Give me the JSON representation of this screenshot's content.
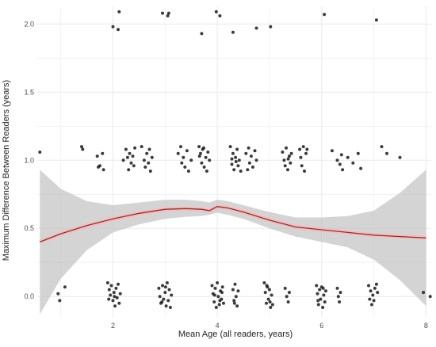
{
  "chart_data": {
    "type": "scatter",
    "xlabel": "Mean Age (all readers, years)",
    "ylabel": "Maximum Difference Between Readers (years)",
    "xlim": [
      0.55,
      8.1
    ],
    "ylim": [
      -0.15,
      2.13
    ],
    "x_ticks": [
      2,
      4,
      6,
      8
    ],
    "x_tick_labels": [
      "2",
      "4",
      "6",
      "8"
    ],
    "y_ticks": [
      0.0,
      0.5,
      1.0,
      1.5,
      2.0
    ],
    "y_tick_labels": [
      "0.0",
      "0.5",
      "1.0",
      "1.5",
      "2.0"
    ],
    "grid": true,
    "colors": {
      "points": "#1a1a1a",
      "smooth_line": "#b22222",
      "confidence_band": "#bdbdbd",
      "grid": "#ebebeb",
      "axis_text": "#4d4d4d"
    },
    "smooth": {
      "x": [
        0.6,
        1.0,
        1.5,
        2.0,
        2.5,
        3.0,
        3.4,
        3.7,
        3.85,
        4.0,
        4.2,
        4.5,
        5.0,
        5.5,
        6.0,
        6.5,
        7.0,
        7.5,
        8.0
      ],
      "y": [
        0.4,
        0.46,
        0.52,
        0.57,
        0.61,
        0.64,
        0.645,
        0.64,
        0.63,
        0.66,
        0.65,
        0.62,
        0.56,
        0.51,
        0.49,
        0.47,
        0.45,
        0.44,
        0.43
      ],
      "lower": [
        -0.13,
        0.13,
        0.34,
        0.47,
        0.53,
        0.57,
        0.585,
        0.59,
        0.6,
        0.615,
        0.6,
        0.57,
        0.5,
        0.44,
        0.4,
        0.36,
        0.27,
        0.12,
        -0.07
      ],
      "upper": [
        0.93,
        0.79,
        0.7,
        0.67,
        0.69,
        0.71,
        0.71,
        0.7,
        0.69,
        0.71,
        0.7,
        0.67,
        0.62,
        0.58,
        0.58,
        0.59,
        0.63,
        0.76,
        0.93
      ]
    },
    "points": [
      {
        "x": 2.0,
        "y": 1.98
      },
      {
        "x": 2.1,
        "y": 1.96
      },
      {
        "x": 2.12,
        "y": 2.09
      },
      {
        "x": 2.95,
        "y": 2.08
      },
      {
        "x": 3.05,
        "y": 2.06
      },
      {
        "x": 3.07,
        "y": 2.08
      },
      {
        "x": 3.7,
        "y": 1.93
      },
      {
        "x": 3.98,
        "y": 2.09
      },
      {
        "x": 4.05,
        "y": 2.06
      },
      {
        "x": 4.3,
        "y": 1.94
      },
      {
        "x": 4.75,
        "y": 1.97
      },
      {
        "x": 5.02,
        "y": 1.98
      },
      {
        "x": 6.05,
        "y": 2.07
      },
      {
        "x": 7.05,
        "y": 2.03
      },
      {
        "x": 0.6,
        "y": 1.06
      },
      {
        "x": 1.4,
        "y": 1.1
      },
      {
        "x": 1.42,
        "y": 1.08
      },
      {
        "x": 1.7,
        "y": 1.03
      },
      {
        "x": 1.75,
        "y": 0.96
      },
      {
        "x": 1.8,
        "y": 1.05
      },
      {
        "x": 1.82,
        "y": 0.93
      },
      {
        "x": 1.72,
        "y": 0.95
      },
      {
        "x": 2.2,
        "y": 1.0
      },
      {
        "x": 2.25,
        "y": 1.08
      },
      {
        "x": 2.28,
        "y": 1.02
      },
      {
        "x": 2.3,
        "y": 0.93
      },
      {
        "x": 2.32,
        "y": 1.05
      },
      {
        "x": 2.35,
        "y": 0.98
      },
      {
        "x": 2.38,
        "y": 1.03
      },
      {
        "x": 2.4,
        "y": 0.96
      },
      {
        "x": 2.42,
        "y": 1.09
      },
      {
        "x": 2.55,
        "y": 1.1
      },
      {
        "x": 2.6,
        "y": 1.0
      },
      {
        "x": 2.62,
        "y": 0.95
      },
      {
        "x": 2.65,
        "y": 1.05
      },
      {
        "x": 2.7,
        "y": 1.08
      },
      {
        "x": 2.72,
        "y": 0.92
      },
      {
        "x": 2.75,
        "y": 1.02
      },
      {
        "x": 2.68,
        "y": 0.98
      },
      {
        "x": 3.25,
        "y": 1.05
      },
      {
        "x": 3.3,
        "y": 1.1
      },
      {
        "x": 3.32,
        "y": 0.98
      },
      {
        "x": 3.35,
        "y": 1.02
      },
      {
        "x": 3.38,
        "y": 0.95
      },
      {
        "x": 3.42,
        "y": 1.07
      },
      {
        "x": 3.45,
        "y": 0.92
      },
      {
        "x": 3.5,
        "y": 1.0
      },
      {
        "x": 3.65,
        "y": 1.1
      },
      {
        "x": 3.68,
        "y": 1.05
      },
      {
        "x": 3.7,
        "y": 0.98
      },
      {
        "x": 3.72,
        "y": 1.08
      },
      {
        "x": 3.75,
        "y": 0.95
      },
      {
        "x": 3.78,
        "y": 1.02
      },
      {
        "x": 3.8,
        "y": 0.92
      },
      {
        "x": 3.82,
        "y": 1.06
      },
      {
        "x": 3.85,
        "y": 1.0
      },
      {
        "x": 3.66,
        "y": 1.03
      },
      {
        "x": 3.74,
        "y": 1.09
      },
      {
        "x": 4.25,
        "y": 1.1
      },
      {
        "x": 4.28,
        "y": 0.97
      },
      {
        "x": 4.3,
        "y": 1.05
      },
      {
        "x": 4.32,
        "y": 0.93
      },
      {
        "x": 4.35,
        "y": 1.02
      },
      {
        "x": 4.38,
        "y": 1.08
      },
      {
        "x": 4.4,
        "y": 0.96
      },
      {
        "x": 4.42,
        "y": 1.0
      },
      {
        "x": 4.45,
        "y": 0.92
      },
      {
        "x": 4.28,
        "y": 1.01
      },
      {
        "x": 4.36,
        "y": 0.99
      },
      {
        "x": 4.55,
        "y": 1.05
      },
      {
        "x": 4.6,
        "y": 1.09
      },
      {
        "x": 4.62,
        "y": 0.98
      },
      {
        "x": 4.65,
        "y": 1.03
      },
      {
        "x": 4.68,
        "y": 0.95
      },
      {
        "x": 4.72,
        "y": 1.07
      },
      {
        "x": 4.75,
        "y": 1.0
      },
      {
        "x": 4.58,
        "y": 0.93
      },
      {
        "x": 5.25,
        "y": 1.06
      },
      {
        "x": 5.28,
        "y": 1.0
      },
      {
        "x": 5.3,
        "y": 0.96
      },
      {
        "x": 5.32,
        "y": 1.09
      },
      {
        "x": 5.35,
        "y": 0.93
      },
      {
        "x": 5.38,
        "y": 1.03
      },
      {
        "x": 5.4,
        "y": 0.98
      },
      {
        "x": 5.42,
        "y": 1.05
      },
      {
        "x": 5.36,
        "y": 1.01
      },
      {
        "x": 5.58,
        "y": 1.08
      },
      {
        "x": 5.6,
        "y": 1.02
      },
      {
        "x": 5.62,
        "y": 0.96
      },
      {
        "x": 5.65,
        "y": 1.1
      },
      {
        "x": 5.67,
        "y": 0.92
      },
      {
        "x": 5.7,
        "y": 1.05
      },
      {
        "x": 5.72,
        "y": 1.08
      },
      {
        "x": 6.2,
        "y": 1.07
      },
      {
        "x": 6.3,
        "y": 1.0
      },
      {
        "x": 6.35,
        "y": 0.97
      },
      {
        "x": 6.38,
        "y": 1.04
      },
      {
        "x": 6.4,
        "y": 0.93
      },
      {
        "x": 6.5,
        "y": 1.02
      },
      {
        "x": 6.6,
        "y": 0.98
      },
      {
        "x": 6.7,
        "y": 1.05
      },
      {
        "x": 6.75,
        "y": 0.94
      },
      {
        "x": 7.15,
        "y": 1.1
      },
      {
        "x": 7.25,
        "y": 1.05
      },
      {
        "x": 7.5,
        "y": 1.02
      },
      {
        "x": 0.98,
        "y": -0.03
      },
      {
        "x": 1.08,
        "y": 0.07
      },
      {
        "x": 0.95,
        "y": 0.02
      },
      {
        "x": 1.9,
        "y": 0.1
      },
      {
        "x": 1.93,
        "y": 0.05
      },
      {
        "x": 1.95,
        "y": 0.01
      },
      {
        "x": 1.97,
        "y": 0.08
      },
      {
        "x": 2.0,
        "y": -0.03
      },
      {
        "x": 2.02,
        "y": 0.03
      },
      {
        "x": 2.04,
        "y": -0.07
      },
      {
        "x": 2.06,
        "y": 0.06
      },
      {
        "x": 2.08,
        "y": -0.01
      },
      {
        "x": 2.1,
        "y": 0.09
      },
      {
        "x": 2.12,
        "y": -0.05
      },
      {
        "x": 2.14,
        "y": 0.02
      },
      {
        "x": 1.92,
        "y": -0.02
      },
      {
        "x": 2.03,
        "y": 0.0
      },
      {
        "x": 2.88,
        "y": 0.06
      },
      {
        "x": 2.9,
        "y": 0.0
      },
      {
        "x": 2.92,
        "y": -0.05
      },
      {
        "x": 2.95,
        "y": 0.08
      },
      {
        "x": 2.97,
        "y": -0.02
      },
      {
        "x": 3.0,
        "y": 0.03
      },
      {
        "x": 3.02,
        "y": -0.07
      },
      {
        "x": 3.04,
        "y": 0.1
      },
      {
        "x": 3.06,
        "y": -0.03
      },
      {
        "x": 3.08,
        "y": 0.05
      },
      {
        "x": 3.1,
        "y": -0.08
      },
      {
        "x": 3.12,
        "y": 0.01
      },
      {
        "x": 2.94,
        "y": -0.04
      },
      {
        "x": 3.01,
        "y": 0.07
      },
      {
        "x": 3.9,
        "y": 0.08
      },
      {
        "x": 3.92,
        "y": 0.02
      },
      {
        "x": 3.94,
        "y": -0.04
      },
      {
        "x": 3.96,
        "y": 0.06
      },
      {
        "x": 3.98,
        "y": -0.08
      },
      {
        "x": 4.0,
        "y": 0.1
      },
      {
        "x": 4.02,
        "y": 0.0
      },
      {
        "x": 4.04,
        "y": -0.06
      },
      {
        "x": 4.06,
        "y": 0.04
      },
      {
        "x": 4.08,
        "y": -0.02
      },
      {
        "x": 4.1,
        "y": 0.07
      },
      {
        "x": 4.12,
        "y": -0.05
      },
      {
        "x": 3.95,
        "y": 0.01
      },
      {
        "x": 4.05,
        "y": -0.03
      },
      {
        "x": 4.09,
        "y": 0.03
      },
      {
        "x": 4.3,
        "y": 0.05
      },
      {
        "x": 4.32,
        "y": -0.03
      },
      {
        "x": 4.34,
        "y": 0.09
      },
      {
        "x": 4.36,
        "y": 0.0
      },
      {
        "x": 4.38,
        "y": -0.07
      },
      {
        "x": 4.4,
        "y": 0.04
      },
      {
        "x": 4.33,
        "y": -0.05
      },
      {
        "x": 4.9,
        "y": 0.1
      },
      {
        "x": 4.92,
        "y": 0.03
      },
      {
        "x": 4.94,
        "y": -0.05
      },
      {
        "x": 4.96,
        "y": 0.07
      },
      {
        "x": 4.98,
        "y": -0.02
      },
      {
        "x": 5.0,
        "y": 0.05
      },
      {
        "x": 5.02,
        "y": -0.08
      },
      {
        "x": 5.04,
        "y": 0.01
      },
      {
        "x": 5.06,
        "y": -0.06
      },
      {
        "x": 4.95,
        "y": 0.08
      },
      {
        "x": 5.01,
        "y": -0.04
      },
      {
        "x": 5.3,
        "y": 0.06
      },
      {
        "x": 5.33,
        "y": 0.0
      },
      {
        "x": 5.36,
        "y": -0.04
      },
      {
        "x": 5.38,
        "y": 0.03
      },
      {
        "x": 5.9,
        "y": 0.08
      },
      {
        "x": 5.92,
        "y": 0.02
      },
      {
        "x": 5.94,
        "y": -0.06
      },
      {
        "x": 5.96,
        "y": 0.05
      },
      {
        "x": 5.98,
        "y": -0.02
      },
      {
        "x": 6.0,
        "y": 0.07
      },
      {
        "x": 6.02,
        "y": -0.08
      },
      {
        "x": 6.04,
        "y": 0.01
      },
      {
        "x": 6.06,
        "y": -0.04
      },
      {
        "x": 6.08,
        "y": 0.04
      },
      {
        "x": 5.93,
        "y": -0.03
      },
      {
        "x": 6.03,
        "y": 0.06
      },
      {
        "x": 6.3,
        "y": 0.06
      },
      {
        "x": 6.32,
        "y": 0.0
      },
      {
        "x": 6.34,
        "y": -0.04
      },
      {
        "x": 6.36,
        "y": 0.03
      },
      {
        "x": 6.9,
        "y": 0.08
      },
      {
        "x": 6.92,
        "y": -0.02
      },
      {
        "x": 6.94,
        "y": 0.04
      },
      {
        "x": 6.96,
        "y": -0.06
      },
      {
        "x": 6.98,
        "y": 0.01
      },
      {
        "x": 7.02,
        "y": 0.06
      },
      {
        "x": 7.05,
        "y": 0.09
      },
      {
        "x": 7.07,
        "y": 0.03
      },
      {
        "x": 7.0,
        "y": -0.03
      },
      {
        "x": 7.95,
        "y": 0.03
      },
      {
        "x": 8.08,
        "y": 0.0
      }
    ]
  }
}
